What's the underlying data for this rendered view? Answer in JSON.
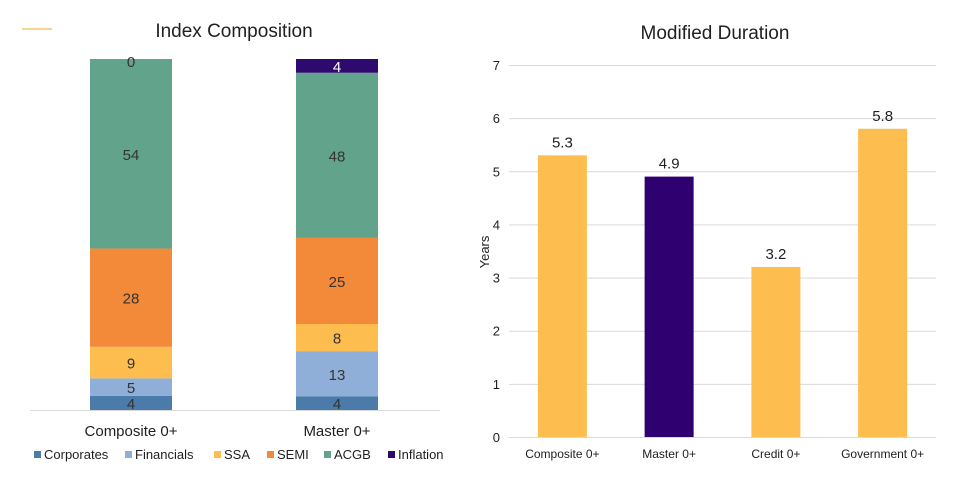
{
  "chart_data": [
    {
      "type": "bar",
      "stacked": true,
      "title": "Index Composition",
      "categories": [
        "Composite 0+",
        "Master 0+"
      ],
      "series": [
        {
          "name": "Corporates",
          "color": "#4a7bab",
          "values": [
            4,
            4
          ]
        },
        {
          "name": "Financials",
          "color": "#8fafd8",
          "values": [
            5,
            13
          ]
        },
        {
          "name": "SSA",
          "color": "#fdbe4f",
          "values": [
            9,
            8
          ]
        },
        {
          "name": "SEMI",
          "color": "#f28a3a",
          "values": [
            28,
            25
          ]
        },
        {
          "name": "ACGB",
          "color": "#62a38c",
          "values": [
            54,
            48
          ]
        },
        {
          "name": "Inflation",
          "color": "#2e0a6e",
          "values": [
            0,
            4
          ]
        }
      ],
      "legend_position": "bottom",
      "grid": false
    },
    {
      "type": "bar",
      "title": "Modified Duration",
      "ylabel": "Years",
      "categories": [
        "Composite 0+",
        "Master 0+",
        "Credit 0+",
        "Government 0+"
      ],
      "values": [
        5.3,
        4.9,
        3.2,
        5.8
      ],
      "colors": [
        "#fdbe4f",
        "#2e0070",
        "#fdbe4f",
        "#fdbe4f"
      ],
      "ylim": [
        0,
        7
      ],
      "yticks": [
        0,
        1,
        2,
        3,
        4,
        5,
        6,
        7
      ],
      "grid": true
    }
  ]
}
